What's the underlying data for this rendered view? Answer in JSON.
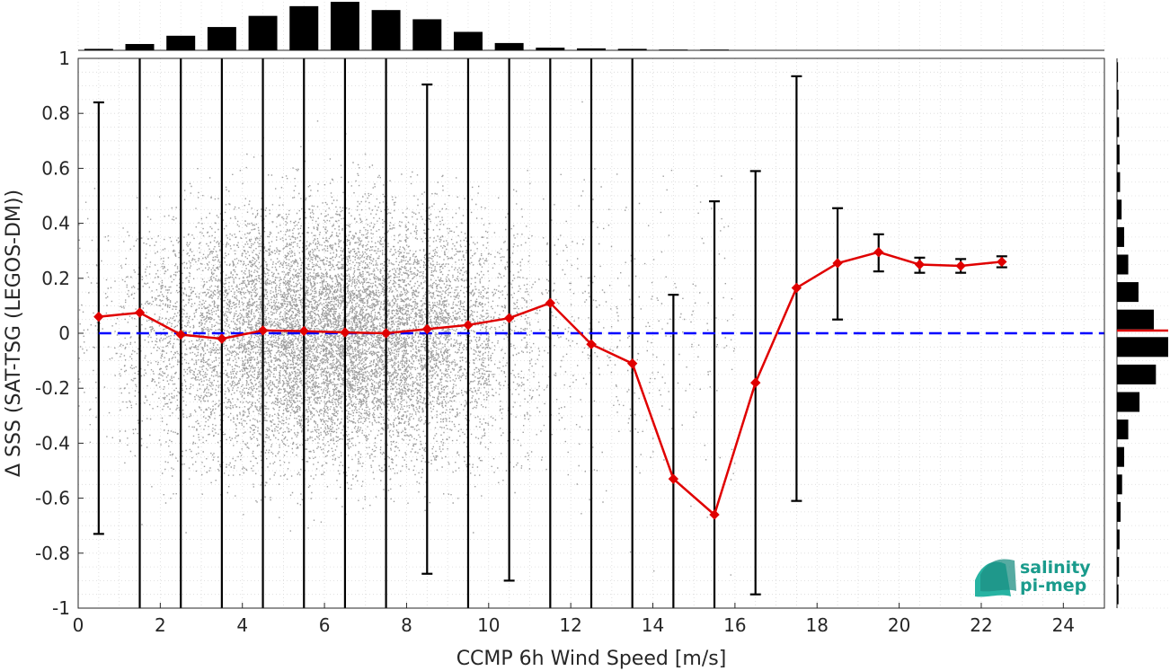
{
  "chart_data": {
    "type": "scatter",
    "title": "",
    "xlabel": "CCMP 6h Wind Speed [m/s]",
    "ylabel": "Δ SSS (SAT-TSG (LEGOS-DM))",
    "xlim": [
      0,
      25
    ],
    "ylim": [
      -1,
      1
    ],
    "xticks": [
      0,
      2,
      4,
      6,
      8,
      10,
      12,
      14,
      16,
      18,
      20,
      22,
      24
    ],
    "yticks": [
      1,
      0.8,
      0.6,
      0.4,
      0.2,
      0,
      -0.2,
      -0.4,
      -0.6,
      -0.8,
      -1
    ],
    "xtick_labels": [
      "0",
      "2",
      "4",
      "6",
      "8",
      "10",
      "12",
      "14",
      "16",
      "18",
      "20",
      "22",
      "24"
    ],
    "ytick_labels": [
      "1",
      "0.8",
      "0.6",
      "0.4",
      "0.2",
      "0",
      "-0.2",
      "-0.4",
      "-0.6",
      "-0.8",
      "-1"
    ],
    "grid": true,
    "reference_line": {
      "y": 0,
      "color": "#0000ff",
      "style": "dashed"
    },
    "series": [
      {
        "color": "#e00000",
        "x": [
          0.5,
          1.5,
          2.5,
          3.5,
          4.5,
          5.5,
          6.5,
          7.5,
          8.5,
          9.5,
          10.5,
          11.5,
          12.5,
          13.5,
          14.5,
          15.5,
          16.5,
          17.5,
          18.5,
          19.5,
          20.5,
          21.5,
          22.5
        ],
        "values": [
          0.06,
          0.075,
          -0.005,
          -0.02,
          0.01,
          0.008,
          0.003,
          0.0,
          0.015,
          0.03,
          0.055,
          0.11,
          -0.04,
          -0.11,
          -0.53,
          -0.66,
          -0.18,
          0.165,
          0.255,
          0.295,
          0.25,
          0.245,
          0.26
        ],
        "error_low": [
          -0.73,
          -1,
          -1,
          -1,
          -1,
          -1,
          -1,
          -1,
          -0.875,
          -1,
          -0.9,
          -1,
          -1,
          -1,
          -1,
          -1,
          -0.95,
          -0.61,
          0.05,
          0.225,
          0.22,
          0.22,
          0.24
        ],
        "error_high": [
          0.84,
          1,
          1,
          1,
          1,
          1,
          1,
          1,
          0.905,
          1,
          1,
          1,
          1,
          1,
          0.14,
          0.48,
          0.59,
          0.935,
          0.455,
          0.36,
          0.275,
          0.27,
          0.28
        ]
      }
    ],
    "scatter_color": "#8c8c8c",
    "top_histogram": {
      "x": [
        0.5,
        1.5,
        2.5,
        3.5,
        4.5,
        5.5,
        6.5,
        7.5,
        8.5,
        9.5,
        10.5,
        11.5,
        12.5,
        13.5,
        14.5,
        15.5
      ],
      "values": [
        0.03,
        0.13,
        0.3,
        0.48,
        0.71,
        0.91,
        1.0,
        0.83,
        0.64,
        0.38,
        0.15,
        0.055,
        0.04,
        0.03,
        0.015,
        0.015
      ]
    },
    "right_histogram": {
      "y": [
        0.95,
        0.85,
        0.75,
        0.65,
        0.55,
        0.45,
        0.35,
        0.25,
        0.15,
        0.05,
        -0.05,
        -0.15,
        -0.25,
        -0.35,
        -0.45,
        -0.55,
        -0.65,
        -0.75,
        -0.85,
        -0.95
      ],
      "values": [
        0.02,
        0.03,
        0.04,
        0.05,
        0.06,
        0.09,
        0.14,
        0.22,
        0.42,
        0.72,
        1.0,
        0.76,
        0.44,
        0.22,
        0.14,
        0.1,
        0.07,
        0.05,
        0.04,
        0.03
      ],
      "median_line_color": "#e00000"
    },
    "logo": {
      "line1": "salinity",
      "line2": "pi-mep"
    }
  }
}
